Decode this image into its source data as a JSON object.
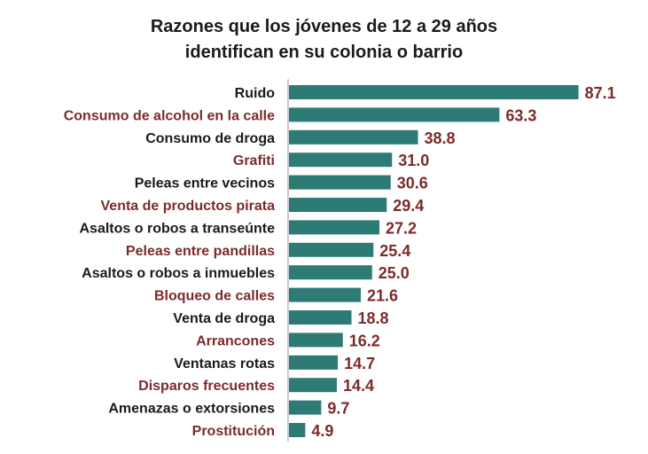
{
  "chart_data": {
    "type": "bar",
    "orientation": "horizontal",
    "title_lines": [
      "Razones que los jóvenes de 12 a 29 años",
      "identifican en su colonia o barrio"
    ],
    "categories": [
      "Ruido",
      "Consumo de alcohol en la calle",
      "Consumo de droga",
      "Grafiti",
      "Peleas entre vecinos",
      "Venta de productos pirata",
      "Asaltos o robos a transeúnte",
      "Peleas entre pandillas",
      "Asaltos o robos a inmuebles",
      "Bloqueo de calles",
      "Venta de droga",
      "Arrancones",
      "Ventanas rotas",
      "Disparos frecuentes",
      "Amenazas o extorsiones",
      "Prostitución"
    ],
    "values": [
      87.1,
      63.3,
      38.8,
      31.0,
      30.6,
      29.4,
      27.2,
      25.4,
      25.0,
      21.6,
      18.8,
      16.2,
      14.7,
      14.4,
      9.7,
      4.9
    ],
    "value_labels": [
      "87.1",
      "63.3",
      "38.8",
      "31.0",
      "30.6",
      "29.4",
      "27.2",
      "25.4",
      "25.0",
      "21.6",
      "18.8",
      "16.2",
      "14.7",
      "14.4",
      "9.7",
      "4.9"
    ],
    "xlim": [
      0,
      100
    ],
    "colors": {
      "bar": "#2e7a74",
      "label_dark": "#1a1a1a",
      "label_accent": "#7b2b2b",
      "value": "#7b2b2b",
      "axis": "#9a9a9a"
    }
  }
}
